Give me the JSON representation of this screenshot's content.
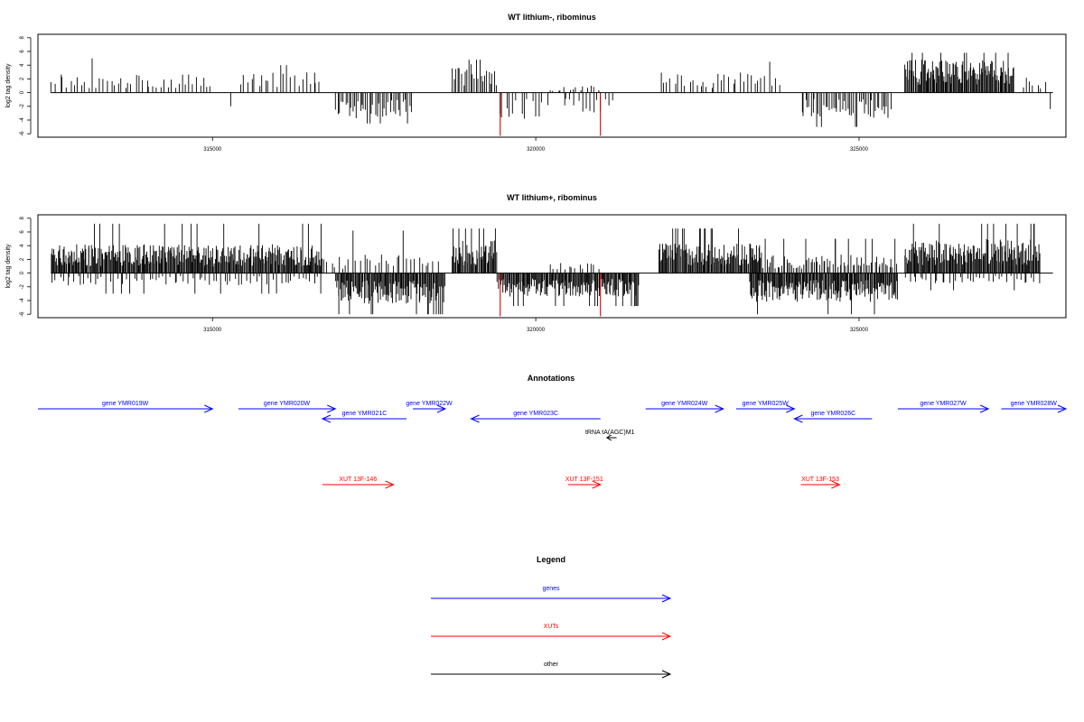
{
  "chart_data": [
    {
      "type": "bar",
      "title": "WT lithium-, ribominus",
      "ylabel": "log2 tag density",
      "xlabel": "",
      "xlim": [
        312300,
        328200
      ],
      "ylim": [
        -6.5,
        8.5
      ],
      "yticks": [
        -6,
        -4,
        -2,
        0,
        2,
        4,
        6,
        8
      ],
      "xticks": [
        315000,
        320000,
        325000
      ],
      "grid": false,
      "signal_segments": [
        {
          "strand": "+",
          "start": 312500,
          "end": 313400,
          "mean": 1.8,
          "max": 5.0,
          "density": "sparse"
        },
        {
          "strand": "+",
          "start": 313400,
          "end": 315000,
          "mean": 1.8,
          "max": 4.8,
          "density": "sparse"
        },
        {
          "strand": "+",
          "start": 315400,
          "end": 316700,
          "mean": 2.0,
          "max": 4.0,
          "density": "sparse"
        },
        {
          "strand": "-",
          "start": 315250,
          "end": 315300,
          "mean": -2.0,
          "max": -2.0,
          "density": "single"
        },
        {
          "strand": "-",
          "start": 316900,
          "end": 318100,
          "mean": -2.5,
          "max": -4.5,
          "density": "medium"
        },
        {
          "strand": "+",
          "start": 318700,
          "end": 319400,
          "mean": 2.8,
          "max": 4.8,
          "density": "medium"
        },
        {
          "strand": "-",
          "start": 319400,
          "end": 320200,
          "mean": -2.5,
          "max": -3.8,
          "density": "sparse"
        },
        {
          "strand": "+",
          "start": 320200,
          "end": 321000,
          "mean": 0.6,
          "max": 1.0,
          "density": "sparse"
        },
        {
          "strand": "-",
          "start": 320400,
          "end": 321200,
          "mean": -2.0,
          "max": -3.5,
          "density": "sparse"
        },
        {
          "strand": "+",
          "start": 321900,
          "end": 323800,
          "mean": 2.0,
          "max": 4.5,
          "density": "sparse"
        },
        {
          "strand": "-",
          "start": 324100,
          "end": 325500,
          "mean": -2.5,
          "max": -5.0,
          "density": "medium"
        },
        {
          "strand": "+",
          "start": 325700,
          "end": 327400,
          "mean": 3.2,
          "max": 5.8,
          "density": "dense"
        },
        {
          "strand": "+",
          "start": 327500,
          "end": 327900,
          "mean": 1.5,
          "max": 2.2,
          "density": "sparse"
        },
        {
          "strand": "-",
          "start": 327900,
          "end": 328000,
          "mean": -2.0,
          "max": -2.8,
          "density": "single"
        }
      ],
      "highlight_bars": [
        {
          "x": 319450,
          "y": -6.3,
          "color": "#e00000"
        },
        {
          "x": 321000,
          "y": -6.3,
          "color": "#e00000"
        }
      ]
    },
    {
      "type": "bar",
      "title": "WT lithium+, ribominus",
      "ylabel": "log2 tag density",
      "xlabel": "",
      "xlim": [
        312300,
        328200
      ],
      "ylim": [
        -6.5,
        8.5
      ],
      "yticks": [
        -6,
        -4,
        -2,
        0,
        2,
        4,
        6,
        8
      ],
      "xticks": [
        315000,
        320000,
        325000
      ],
      "grid": false,
      "signal_segments": [
        {
          "strand": "+",
          "start": 312500,
          "end": 316700,
          "mean": 2.8,
          "max": 7.2,
          "density": "dense"
        },
        {
          "strand": "-",
          "start": 312500,
          "end": 316700,
          "mean": -1.2,
          "max": -3.0,
          "density": "sparse"
        },
        {
          "strand": "+",
          "start": 316700,
          "end": 318500,
          "mean": 1.8,
          "max": 6.2,
          "density": "sparse"
        },
        {
          "strand": "-",
          "start": 316900,
          "end": 318600,
          "mean": -3.0,
          "max": -6.0,
          "density": "dense"
        },
        {
          "strand": "+",
          "start": 318700,
          "end": 319400,
          "mean": 3.2,
          "max": 6.5,
          "density": "dense"
        },
        {
          "strand": "-",
          "start": 319400,
          "end": 321600,
          "mean": -2.3,
          "max": -4.8,
          "density": "dense"
        },
        {
          "strand": "+",
          "start": 320200,
          "end": 321000,
          "mean": 1.0,
          "max": 2.0,
          "density": "sparse"
        },
        {
          "strand": "+",
          "start": 321900,
          "end": 323500,
          "mean": 3.0,
          "max": 6.5,
          "density": "dense"
        },
        {
          "strand": "-",
          "start": 323300,
          "end": 325600,
          "mean": -2.8,
          "max": -6.0,
          "density": "dense"
        },
        {
          "strand": "+",
          "start": 323500,
          "end": 325600,
          "mean": 1.8,
          "max": 5.0,
          "density": "medium"
        },
        {
          "strand": "+",
          "start": 325700,
          "end": 327800,
          "mean": 3.3,
          "max": 7.2,
          "density": "dense"
        },
        {
          "strand": "-",
          "start": 325700,
          "end": 327800,
          "mean": -1.0,
          "max": -2.5,
          "density": "sparse"
        }
      ],
      "highlight_bars": [
        {
          "x": 319450,
          "y": -6.3,
          "color": "#e00000"
        },
        {
          "x": 321000,
          "y": -6.3,
          "color": "#e00000"
        }
      ]
    }
  ],
  "annotations": {
    "title": "Annotations",
    "genes": [
      {
        "label": "gene YMR019W",
        "start": 312300,
        "end": 315000,
        "strand": "+"
      },
      {
        "label": "gene YMR020W",
        "start": 315400,
        "end": 316900,
        "strand": "+"
      },
      {
        "label": "gene YMR021C",
        "start": 316700,
        "end": 318000,
        "strand": "-"
      },
      {
        "label": "gene YMR022W",
        "start": 318100,
        "end": 318600,
        "strand": "+"
      },
      {
        "label": "gene YMR023C",
        "start": 319000,
        "end": 321000,
        "strand": "-"
      },
      {
        "label": "gene YMR024W",
        "start": 321700,
        "end": 322900,
        "strand": "+"
      },
      {
        "label": "gene YMR025W",
        "start": 323100,
        "end": 324000,
        "strand": "+"
      },
      {
        "label": "gene YMR026C",
        "start": 324000,
        "end": 325200,
        "strand": "-"
      },
      {
        "label": "gene YMR027W",
        "start": 325600,
        "end": 327000,
        "strand": "+"
      },
      {
        "label": "gene YMR028W",
        "start": 327200,
        "end": 328200,
        "strand": "+"
      }
    ],
    "xuts": [
      {
        "label": "XUT 13F-146",
        "start": 316700,
        "end": 317800,
        "strand": "+"
      },
      {
        "label": "XUT 13F-151",
        "start": 320500,
        "end": 321000,
        "strand": "+"
      },
      {
        "label": "XUT 13F-153",
        "start": 324100,
        "end": 324700,
        "strand": "+"
      }
    ],
    "other": [
      {
        "label": "tRNA tA(AGC)M1",
        "start": 321100,
        "end": 321250,
        "strand": "-"
      }
    ]
  },
  "legend": {
    "title": "Legend",
    "items": [
      {
        "label": "genes",
        "color": "#0000ff"
      },
      {
        "label": "XUTs",
        "color": "#ff0000"
      },
      {
        "label": "other",
        "color": "#000000"
      }
    ]
  },
  "colors": {
    "gene": "#0000ff",
    "xut": "#ff0000",
    "other": "#000000",
    "signal": "#000000",
    "highlight": "#e00000"
  }
}
